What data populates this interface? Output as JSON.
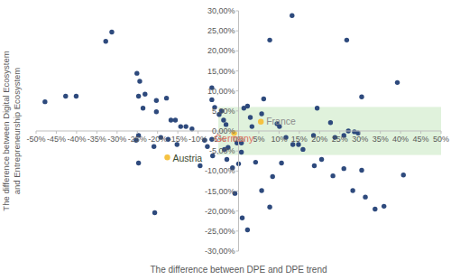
{
  "chart_data": {
    "type": "scatter",
    "x_label": "The difference between DPE and DPE trend",
    "y_label": "The difference between Digital Ecosystem and Entrepreneurship Ecosystem",
    "color": "#2e4a7d",
    "marker": "circle",
    "grid": false,
    "x": [
      -31.3,
      -32.8,
      -47.8,
      -42.7,
      -40.1,
      -25.1,
      -24.4,
      -24.7,
      -23.1,
      -23.6,
      -20.3,
      -20.3,
      -17.8,
      -16.7,
      -15.6,
      -14.3,
      -13.0,
      -11.5,
      -6.6,
      -6.6,
      -5.9,
      -4.8,
      -4.2,
      -3.7,
      -3.1,
      -24.7,
      -25.3,
      -19.2,
      -17.4,
      -15.2,
      -24.7,
      -20.9,
      -20.7,
      -6.6,
      -7.7,
      -8.4,
      -9.5,
      -6.4,
      -3.5,
      -2.9,
      -1.5,
      -0.9,
      0.0,
      -0.4,
      -2.6,
      0.7,
      13.2,
      7.7,
      6.2,
      5.7,
      2.9,
      2.2,
      1.3,
      3.3,
      9.5,
      10.1,
      11.7,
      13.4,
      14.8,
      15.9,
      18.5,
      19.4,
      22.7,
      23.8,
      26.0,
      27.1,
      28.6,
      29.5,
      30.4,
      26.7,
      39.2,
      40.7,
      0.7,
      4.2,
      5.7,
      2.2,
      0.9,
      7.7,
      8.4,
      10.6,
      18.7,
      23.3,
      26.0,
      28.2,
      31.3,
      33.7,
      35.9,
      30.4,
      20.5
    ],
    "values": [
      24.7,
      22.4,
      7.3,
      8.7,
      8.7,
      14.4,
      12.4,
      8.7,
      9.2,
      5.7,
      7.6,
      4.8,
      8.2,
      2.7,
      2.7,
      1.1,
      1.1,
      0.5,
      10.8,
      7.8,
      5.9,
      4.1,
      5.0,
      2.7,
      1.6,
      -1.1,
      -2.3,
      -1.6,
      -2.1,
      -3.4,
      -8.0,
      -3.9,
      -20.4,
      -2.1,
      -3.9,
      -2.3,
      -8.7,
      -6.2,
      -4.6,
      -7.1,
      -9.2,
      -15.6,
      -8.2,
      -3.0,
      -4.1,
      -5.3,
      28.8,
      22.7,
      8.0,
      4.3,
      3.4,
      6.2,
      5.7,
      1.1,
      1.8,
      1.1,
      -1.6,
      -3.4,
      -3.4,
      -4.6,
      -1.1,
      5.7,
      2.1,
      -1.6,
      -1.1,
      0.0,
      -0.2,
      -0.5,
      8.5,
      22.7,
      12.1,
      -11.0,
      -3.0,
      -7.8,
      -14.9,
      -24.7,
      -21.7,
      -19.0,
      -11.4,
      -8.0,
      -8.7,
      -11.2,
      -9.4,
      -14.9,
      -16.5,
      -19.5,
      -18.8,
      -9.8,
      -7.1
    ],
    "annotations": [
      {
        "text": "France",
        "x": 5.5,
        "y": 2.3,
        "color": "#f5c242"
      },
      {
        "text": "Germany",
        "x": -1.1,
        "y": -0.5,
        "color": "#f5c242"
      },
      {
        "text": "Austria",
        "x": -17.6,
        "y": -6.6,
        "color": "#f5c242"
      }
    ],
    "band": {
      "x": [
        -5,
        50
      ],
      "y": [
        -6,
        6
      ],
      "color": "#c6e7bf"
    },
    "xlim": [
      -50,
      50
    ],
    "ylim": [
      -30,
      30
    ],
    "xticks": [
      {
        "value": -50,
        "label": "-50%"
      },
      {
        "value": -45,
        "label": "-45%"
      },
      {
        "value": -40,
        "label": "-40%"
      },
      {
        "value": -35,
        "label": "-35%"
      },
      {
        "value": -30,
        "label": "-30%"
      },
      {
        "value": -25,
        "label": "-25%"
      },
      {
        "value": -20,
        "label": "-20%"
      },
      {
        "value": -15,
        "label": "-15%"
      },
      {
        "value": -10,
        "label": "-10%"
      },
      {
        "value": -5,
        "label": "-5%"
      },
      {
        "value": 0,
        "label": "0%"
      },
      {
        "value": 5,
        "label": "5%"
      },
      {
        "value": 10,
        "label": "10%"
      },
      {
        "value": 15,
        "label": "15%"
      },
      {
        "value": 20,
        "label": "20%"
      },
      {
        "value": 25,
        "label": "25%"
      },
      {
        "value": 30,
        "label": "30%"
      },
      {
        "value": 35,
        "label": "35%"
      },
      {
        "value": 40,
        "label": "40%"
      },
      {
        "value": 45,
        "label": "45%"
      },
      {
        "value": 50,
        "label": "50%"
      }
    ],
    "yticks": [
      {
        "value": -30,
        "label": "-30,00%"
      },
      {
        "value": -25,
        "label": "-25,00%"
      },
      {
        "value": -20,
        "label": "-20,00%"
      },
      {
        "value": -15,
        "label": "-15,00%"
      },
      {
        "value": -10,
        "label": "-10,00%"
      },
      {
        "value": -5,
        "label": "-5,00%"
      },
      {
        "value": 0,
        "label": "0,00%"
      },
      {
        "value": 5,
        "label": "5,00%"
      },
      {
        "value": 10,
        "label": "10,00%"
      },
      {
        "value": 15,
        "label": "15,00%"
      },
      {
        "value": 20,
        "label": "20,00%"
      },
      {
        "value": 25,
        "label": "25,00%"
      },
      {
        "value": 30,
        "label": "30,00%"
      }
    ]
  }
}
